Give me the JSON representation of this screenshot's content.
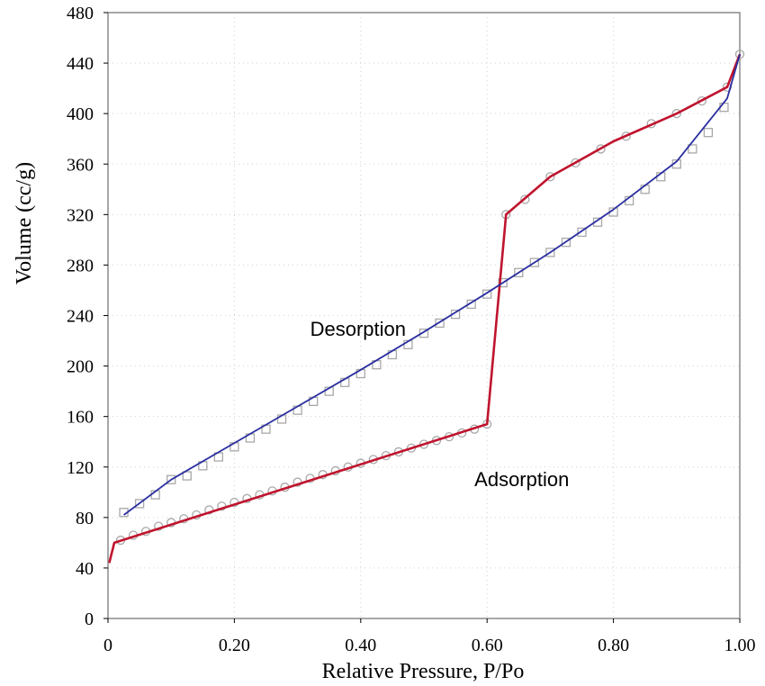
{
  "chart_data": {
    "type": "line",
    "xlabel": "Relative Pressure, P/Po",
    "ylabel": "Volume (cc/g)",
    "xlim": [
      0,
      1.0
    ],
    "ylim": [
      0,
      480
    ],
    "x_ticks": [
      {
        "value": 0,
        "label": "0"
      },
      {
        "value": 0.2,
        "label": "0.20"
      },
      {
        "value": 0.4,
        "label": "0.40"
      },
      {
        "value": 0.6,
        "label": "0.60"
      },
      {
        "value": 0.8,
        "label": "0.80"
      },
      {
        "value": 1.0,
        "label": "1.00"
      }
    ],
    "y_ticks": [
      {
        "value": 0,
        "label": "0"
      },
      {
        "value": 40,
        "label": "40"
      },
      {
        "value": 80,
        "label": "80"
      },
      {
        "value": 120,
        "label": "120"
      },
      {
        "value": 160,
        "label": "160"
      },
      {
        "value": 200,
        "label": "200"
      },
      {
        "value": 240,
        "label": "240"
      },
      {
        "value": 280,
        "label": "280"
      },
      {
        "value": 320,
        "label": "320"
      },
      {
        "value": 360,
        "label": "360"
      },
      {
        "value": 400,
        "label": "400"
      },
      {
        "value": 440,
        "label": "440"
      },
      {
        "value": 480,
        "label": "480"
      }
    ],
    "grid": true,
    "series": [
      {
        "name": "Adsorption",
        "color": "#c0142e",
        "marker": "circle",
        "points": [
          [
            0.002,
            44
          ],
          [
            0.01,
            60
          ],
          [
            0.6,
            154
          ],
          [
            0.63,
            320
          ],
          [
            0.7,
            350
          ],
          [
            0.8,
            378
          ],
          [
            0.9,
            400
          ],
          [
            0.98,
            421
          ],
          [
            1.0,
            447
          ]
        ],
        "marker_points": [
          [
            0.02,
            62
          ],
          [
            0.04,
            66
          ],
          [
            0.06,
            69
          ],
          [
            0.08,
            73
          ],
          [
            0.1,
            76
          ],
          [
            0.12,
            79
          ],
          [
            0.14,
            82
          ],
          [
            0.16,
            86
          ],
          [
            0.18,
            89
          ],
          [
            0.2,
            92
          ],
          [
            0.22,
            95
          ],
          [
            0.24,
            98
          ],
          [
            0.26,
            101
          ],
          [
            0.28,
            104
          ],
          [
            0.3,
            108
          ],
          [
            0.32,
            111
          ],
          [
            0.34,
            114
          ],
          [
            0.36,
            117
          ],
          [
            0.38,
            120
          ],
          [
            0.4,
            123
          ],
          [
            0.42,
            126
          ],
          [
            0.44,
            129
          ],
          [
            0.46,
            132
          ],
          [
            0.48,
            135
          ],
          [
            0.5,
            138
          ],
          [
            0.52,
            141
          ],
          [
            0.54,
            144
          ],
          [
            0.56,
            147
          ],
          [
            0.58,
            150
          ],
          [
            0.6,
            154
          ],
          [
            0.63,
            320
          ],
          [
            0.66,
            332
          ],
          [
            0.7,
            350
          ],
          [
            0.74,
            361
          ],
          [
            0.78,
            372
          ],
          [
            0.82,
            382
          ],
          [
            0.86,
            392
          ],
          [
            0.9,
            400
          ],
          [
            0.94,
            410
          ],
          [
            0.98,
            421
          ],
          [
            1.0,
            447
          ]
        ]
      },
      {
        "name": "Desorption",
        "color": "#2a2ea0",
        "marker": "square",
        "points": [
          [
            0.025,
            82
          ],
          [
            0.1,
            110
          ],
          [
            0.2,
            139
          ],
          [
            0.3,
            168
          ],
          [
            0.4,
            197
          ],
          [
            0.5,
            227
          ],
          [
            0.6,
            258
          ],
          [
            0.7,
            290
          ],
          [
            0.8,
            324
          ],
          [
            0.9,
            362
          ],
          [
            0.98,
            412
          ],
          [
            1.0,
            447
          ]
        ],
        "marker_points": [
          [
            0.025,
            84
          ],
          [
            0.05,
            91
          ],
          [
            0.075,
            98
          ],
          [
            0.1,
            110
          ],
          [
            0.125,
            113
          ],
          [
            0.15,
            121
          ],
          [
            0.175,
            128
          ],
          [
            0.2,
            136
          ],
          [
            0.225,
            143
          ],
          [
            0.25,
            150
          ],
          [
            0.275,
            158
          ],
          [
            0.3,
            165
          ],
          [
            0.325,
            172
          ],
          [
            0.35,
            180
          ],
          [
            0.375,
            187
          ],
          [
            0.4,
            194
          ],
          [
            0.425,
            201
          ],
          [
            0.45,
            209
          ],
          [
            0.475,
            217
          ],
          [
            0.5,
            226
          ],
          [
            0.525,
            234
          ],
          [
            0.55,
            241
          ],
          [
            0.575,
            249
          ],
          [
            0.6,
            257
          ],
          [
            0.625,
            266
          ],
          [
            0.65,
            274
          ],
          [
            0.675,
            282
          ],
          [
            0.7,
            290
          ],
          [
            0.725,
            298
          ],
          [
            0.75,
            306
          ],
          [
            0.775,
            314
          ],
          [
            0.8,
            322
          ],
          [
            0.825,
            331
          ],
          [
            0.85,
            340
          ],
          [
            0.875,
            350
          ],
          [
            0.9,
            360
          ],
          [
            0.925,
            372
          ],
          [
            0.95,
            385
          ],
          [
            0.975,
            405
          ]
        ]
      }
    ],
    "annotations": [
      {
        "text": "Desorption",
        "x": 0.32,
        "y": 224
      },
      {
        "text": "Adsorption",
        "x": 0.58,
        "y": 105
      }
    ]
  }
}
